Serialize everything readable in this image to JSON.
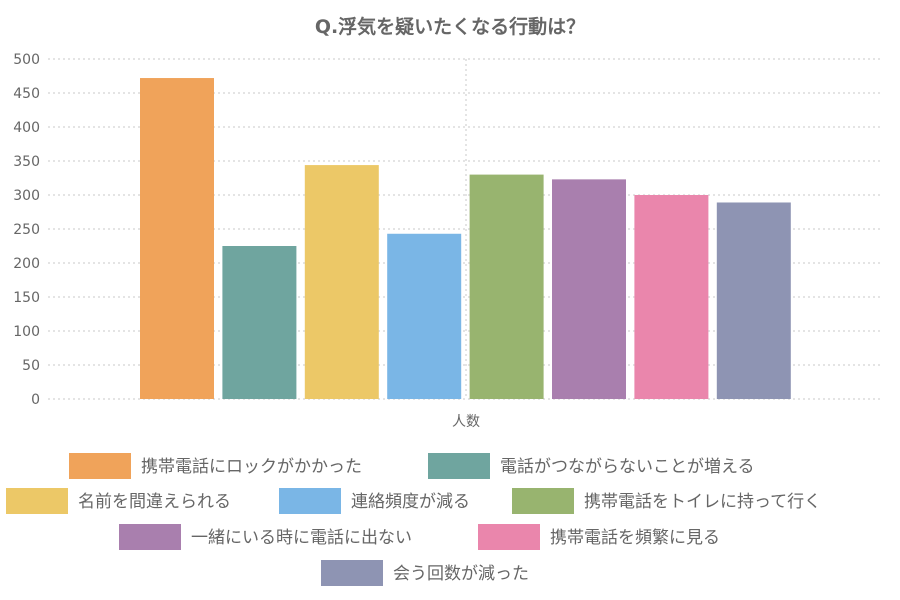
{
  "chart_data": {
    "type": "bar",
    "title": "Q.浮気を疑いたくなる行動は？",
    "categories": [
      "人数"
    ],
    "series": [
      {
        "name": "携帯電話にロックがかかった",
        "values": [
          472
        ],
        "color": "#F0A35A"
      },
      {
        "name": "電話がつながらないことが増える",
        "values": [
          225
        ],
        "color": "#6FA59F"
      },
      {
        "name": "名前を間違えられる",
        "values": [
          344
        ],
        "color": "#ECC867"
      },
      {
        "name": "連絡頻度が減る",
        "values": [
          243
        ],
        "color": "#7AB6E6"
      },
      {
        "name": "携帯電話をトイレに持って行く",
        "values": [
          330
        ],
        "color": "#98B46F"
      },
      {
        "name": "一緒にいる時に電話に出ない",
        "values": [
          323
        ],
        "color": "#A97FAE"
      },
      {
        "name": "携帯電話を頻繁に見る",
        "values": [
          300
        ],
        "color": "#EA86AC"
      },
      {
        "name": "会う回数が減った",
        "values": [
          289
        ],
        "color": "#8E94B3"
      }
    ],
    "xlabel": "",
    "ylabel": "",
    "ylim": [
      0,
      500
    ],
    "yticks": [
      0,
      50,
      100,
      150,
      200,
      250,
      300,
      350,
      400,
      450,
      500
    ],
    "grid": true,
    "legend_position": "bottom"
  }
}
